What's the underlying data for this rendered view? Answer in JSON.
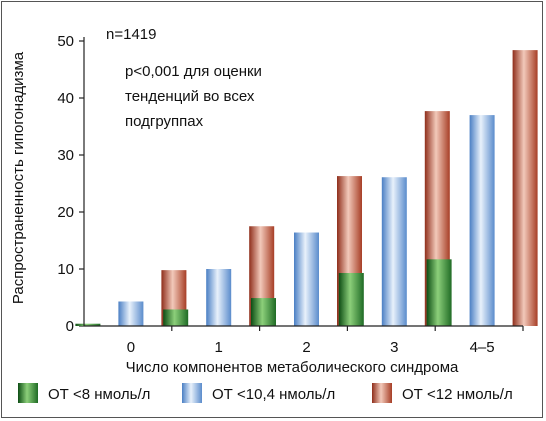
{
  "chart_data": {
    "type": "bar",
    "sample_note": "n=1419",
    "annotation": [
      "p<0,001 для оценки",
      "тенденций во всех",
      "подгруппах"
    ],
    "xlabel": "Число компонентов метаболического синдрома",
    "ylabel": "Распространенность гипогонадизма",
    "categories": [
      "0",
      "1",
      "2",
      "3",
      "4–5"
    ],
    "ylim": [
      0,
      50
    ],
    "yticks": [
      0,
      10,
      20,
      30,
      40,
      50
    ],
    "grid": false,
    "legend_position": "bottom",
    "series": [
      {
        "name": "ОТ <8 нмоль/л",
        "color": "#2f7d32",
        "values": [
          0.4,
          2.9,
          4.9,
          9.3,
          11.7
        ]
      },
      {
        "name": "ОТ <10,4 нмоль/л",
        "color": "#6f9fd8",
        "values": [
          4.3,
          10.0,
          16.4,
          26.1,
          37.0
        ]
      },
      {
        "name": "ОТ <12 нмоль/л",
        "color": "#c0553a",
        "values": [
          9.8,
          17.5,
          26.3,
          37.7,
          48.4
        ]
      }
    ]
  }
}
